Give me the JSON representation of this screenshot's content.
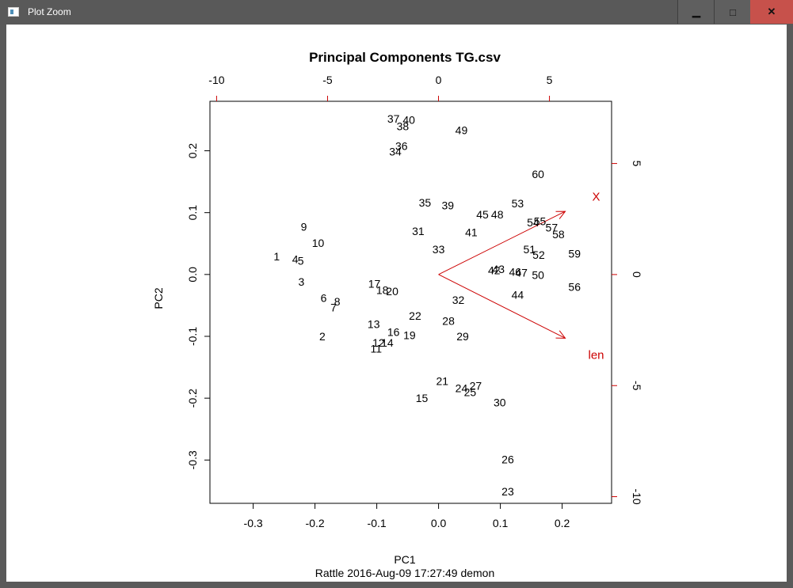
{
  "window": {
    "title": "Plot Zoom",
    "min_glyph": "▁",
    "max_glyph": "□",
    "close_glyph": "✕",
    "icon": "app-window-icon"
  },
  "colors": {
    "points": "#000000",
    "arrows": "#cc0000",
    "axis": "#000000"
  },
  "chart_data": {
    "type": "scatter",
    "subtype": "biplot",
    "title": "Principal Components TG.csv",
    "xlabel": "PC1",
    "ylabel": "PC2",
    "caption": "Rattle 2016-Aug-09 17:27:49 demon",
    "xlim": [
      -0.37,
      0.28
    ],
    "ylim": [
      -0.37,
      0.28
    ],
    "xticks": [
      "-0.3",
      "-0.2",
      "-0.1",
      "0.0",
      "0.1",
      "0.2"
    ],
    "yticks": [
      "-0.3",
      "-0.2",
      "-0.1",
      "0.0",
      "0.1",
      "0.2"
    ],
    "top_axis": {
      "lim": [
        -10.3,
        7.8
      ],
      "ticks": [
        "-10",
        "-5",
        "0",
        "5"
      ]
    },
    "right_axis": {
      "lim": [
        -10.3,
        7.8
      ],
      "ticks": [
        "-10",
        "-5",
        "0",
        "5"
      ]
    },
    "points": [
      {
        "label": "1",
        "x": -0.262,
        "y": 0.029
      },
      {
        "label": "2",
        "x": -0.188,
        "y": -0.1
      },
      {
        "label": "3",
        "x": -0.222,
        "y": -0.012
      },
      {
        "label": "4",
        "x": -0.232,
        "y": 0.025
      },
      {
        "label": "5",
        "x": -0.223,
        "y": 0.022
      },
      {
        "label": "6",
        "x": -0.186,
        "y": -0.038
      },
      {
        "label": "7",
        "x": -0.17,
        "y": -0.053
      },
      {
        "label": "8",
        "x": -0.164,
        "y": -0.044
      },
      {
        "label": "9",
        "x": -0.218,
        "y": 0.077
      },
      {
        "label": "10",
        "x": -0.195,
        "y": 0.051
      },
      {
        "label": "11",
        "x": -0.101,
        "y": -0.12
      },
      {
        "label": "12",
        "x": -0.097,
        "y": -0.11
      },
      {
        "label": "13",
        "x": -0.105,
        "y": -0.08
      },
      {
        "label": "14",
        "x": -0.083,
        "y": -0.11
      },
      {
        "label": "15",
        "x": -0.027,
        "y": -0.2
      },
      {
        "label": "16",
        "x": -0.073,
        "y": -0.093
      },
      {
        "label": "17",
        "x": -0.104,
        "y": -0.015
      },
      {
        "label": "18",
        "x": -0.091,
        "y": -0.025
      },
      {
        "label": "19",
        "x": -0.047,
        "y": -0.098
      },
      {
        "label": "20",
        "x": -0.075,
        "y": -0.027
      },
      {
        "label": "21",
        "x": 0.006,
        "y": -0.172
      },
      {
        "label": "22",
        "x": -0.038,
        "y": -0.067
      },
      {
        "label": "23",
        "x": 0.112,
        "y": -0.351
      },
      {
        "label": "24",
        "x": 0.037,
        "y": -0.184
      },
      {
        "label": "25",
        "x": 0.051,
        "y": -0.19
      },
      {
        "label": "26",
        "x": 0.112,
        "y": -0.299
      },
      {
        "label": "27",
        "x": 0.06,
        "y": -0.18
      },
      {
        "label": "28",
        "x": 0.016,
        "y": -0.075
      },
      {
        "label": "29",
        "x": 0.039,
        "y": -0.1
      },
      {
        "label": "30",
        "x": 0.099,
        "y": -0.207
      },
      {
        "label": "31",
        "x": -0.033,
        "y": 0.07
      },
      {
        "label": "32",
        "x": 0.032,
        "y": -0.041
      },
      {
        "label": "33",
        "x": 0.0,
        "y": 0.041
      },
      {
        "label": "34",
        "x": -0.07,
        "y": 0.199
      },
      {
        "label": "35",
        "x": -0.022,
        "y": 0.116
      },
      {
        "label": "36",
        "x": -0.06,
        "y": 0.208
      },
      {
        "label": "37",
        "x": -0.073,
        "y": 0.252
      },
      {
        "label": "38",
        "x": -0.058,
        "y": 0.24
      },
      {
        "label": "39",
        "x": 0.015,
        "y": 0.112
      },
      {
        "label": "40",
        "x": -0.048,
        "y": 0.25
      },
      {
        "label": "41",
        "x": 0.053,
        "y": 0.068
      },
      {
        "label": "42",
        "x": 0.09,
        "y": 0.007
      },
      {
        "label": "43",
        "x": 0.097,
        "y": 0.009
      },
      {
        "label": "44",
        "x": 0.128,
        "y": -0.033
      },
      {
        "label": "45",
        "x": 0.071,
        "y": 0.097
      },
      {
        "label": "46",
        "x": 0.124,
        "y": 0.004
      },
      {
        "label": "47",
        "x": 0.134,
        "y": 0.003
      },
      {
        "label": "48",
        "x": 0.095,
        "y": 0.097
      },
      {
        "label": "49",
        "x": 0.037,
        "y": 0.233
      },
      {
        "label": "50",
        "x": 0.161,
        "y": -0.001
      },
      {
        "label": "51",
        "x": 0.147,
        "y": 0.041
      },
      {
        "label": "52",
        "x": 0.162,
        "y": 0.032
      },
      {
        "label": "53",
        "x": 0.128,
        "y": 0.115
      },
      {
        "label": "54",
        "x": 0.153,
        "y": 0.084
      },
      {
        "label": "55",
        "x": 0.164,
        "y": 0.086
      },
      {
        "label": "56",
        "x": 0.22,
        "y": -0.02
      },
      {
        "label": "57",
        "x": 0.183,
        "y": 0.076
      },
      {
        "label": "58",
        "x": 0.194,
        "y": 0.065
      },
      {
        "label": "59",
        "x": 0.22,
        "y": 0.034
      },
      {
        "label": "60",
        "x": 0.161,
        "y": 0.162
      }
    ],
    "arrows": [
      {
        "label": "X",
        "x": 0.205,
        "y": 0.102,
        "label_x": 0.255,
        "label_y": 0.126
      },
      {
        "label": "len",
        "x": 0.205,
        "y": -0.103,
        "label_x": 0.255,
        "label_y": -0.13
      }
    ]
  }
}
